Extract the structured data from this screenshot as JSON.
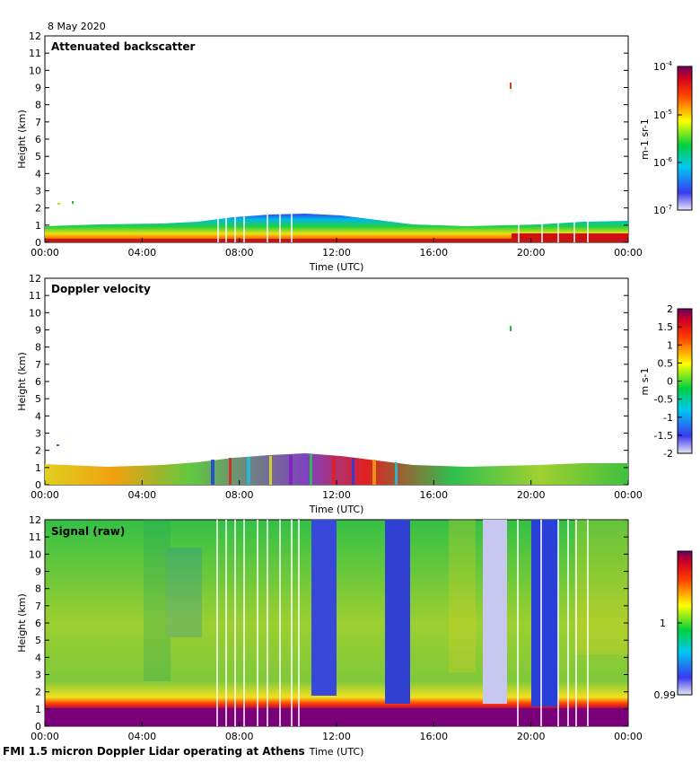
{
  "date_label": "8 May 2020",
  "footer": "FMI 1.5 micron Doppler Lidar operating at Athens",
  "chart_data": [
    {
      "type": "heatmap",
      "title": "Attenuated backscatter",
      "xlabel": "Time (UTC)",
      "ylabel": "Height (km)",
      "xticks": [
        "00:00",
        "04:00",
        "08:00",
        "12:00",
        "16:00",
        "20:00",
        "00:00"
      ],
      "yticks": [
        "0",
        "1",
        "2",
        "3",
        "4",
        "5",
        "6",
        "7",
        "8",
        "9",
        "10",
        "11",
        "12"
      ],
      "ylim": [
        0,
        12
      ],
      "colorbar": {
        "label": "m-1 sr-1",
        "scale": "log",
        "ticks": [
          {
            "base": "10",
            "exp": "-4"
          },
          {
            "base": "10",
            "exp": "-5"
          },
          {
            "base": "10",
            "exp": "-6"
          },
          {
            "base": "10",
            "exp": "-7"
          }
        ]
      }
    },
    {
      "type": "heatmap",
      "title": "Doppler velocity",
      "xlabel": "Time (UTC)",
      "ylabel": "Height (km)",
      "xticks": [
        "00:00",
        "04:00",
        "08:00",
        "12:00",
        "16:00",
        "20:00",
        "00:00"
      ],
      "yticks": [
        "0",
        "1",
        "2",
        "3",
        "4",
        "5",
        "6",
        "7",
        "8",
        "9",
        "10",
        "11",
        "12"
      ],
      "ylim": [
        0,
        12
      ],
      "colorbar": {
        "label": "m s-1",
        "ticks": [
          "2",
          "1.5",
          "1",
          "0.5",
          "0",
          "-0.5",
          "-1",
          "-1.5",
          "-2"
        ],
        "range": [
          -2,
          2
        ]
      }
    },
    {
      "type": "heatmap",
      "title": "Signal (raw)",
      "xlabel": "Time (UTC)",
      "ylabel": "Height (km)",
      "xticks": [
        "00:00",
        "04:00",
        "08:00",
        "12:00",
        "16:00",
        "20:00",
        "00:00"
      ],
      "yticks": [
        "0",
        "1",
        "2",
        "3",
        "4",
        "5",
        "6",
        "7",
        "8",
        "9",
        "10",
        "11",
        "12"
      ],
      "ylim": [
        0,
        12
      ],
      "colorbar": {
        "ticks": [
          "1",
          "0.99"
        ],
        "range": [
          0.99,
          1.01
        ]
      }
    }
  ]
}
